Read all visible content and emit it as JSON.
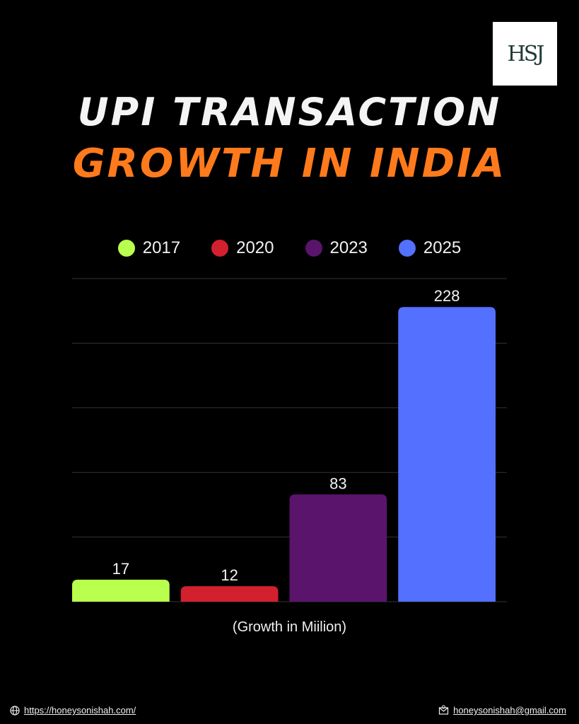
{
  "header": {
    "logo_text": "HSJ",
    "title_line1": "UPI TRANSACTION",
    "title_line2": "GROWTH IN INDIA"
  },
  "colors": {
    "background": "#000000",
    "title_primary": "#f4f4f4",
    "title_accent": "#ff7a1c",
    "gridline": "#333333"
  },
  "legend": [
    {
      "label": "2017",
      "color": "#b9ff4d"
    },
    {
      "label": "2020",
      "color": "#d3202f"
    },
    {
      "label": "2023",
      "color": "#5a146b"
    },
    {
      "label": "2025",
      "color": "#5370ff"
    }
  ],
  "chart_data": {
    "type": "bar",
    "title": "UPI TRANSACTION GROWTH IN INDIA",
    "categories": [
      "2017",
      "2020",
      "2023",
      "2025"
    ],
    "values": [
      17,
      12,
      83,
      228
    ],
    "colors": [
      "#b9ff4d",
      "#d3202f",
      "#5a146b",
      "#5370ff"
    ],
    "xlabel": "(Growth in Miilion)",
    "ylabel": "",
    "ylim": [
      0,
      250
    ],
    "grid": true,
    "legend_position": "top"
  },
  "footer": {
    "website": "https://honeysonishah.com/",
    "email": "honeysonishah@gmail.com",
    "website_icon": "globe-icon",
    "email_icon": "mail-icon"
  }
}
